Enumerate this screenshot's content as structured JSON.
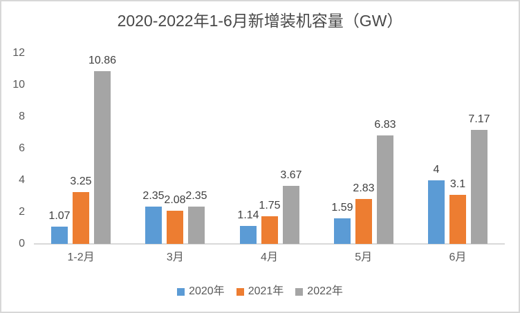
{
  "chart_data": {
    "type": "bar",
    "title": "2020-2022年1-6月新增装机容量（GW）",
    "categories": [
      "1-2月",
      "3月",
      "4月",
      "5月",
      "6月"
    ],
    "series": [
      {
        "name": "2020年",
        "color": "#5B9BD5",
        "values": [
          1.07,
          2.35,
          1.14,
          1.59,
          4
        ]
      },
      {
        "name": "2021年",
        "color": "#ED7D31",
        "values": [
          3.25,
          2.08,
          1.75,
          2.83,
          3.1
        ]
      },
      {
        "name": "2022年",
        "color": "#A5A5A5",
        "values": [
          10.86,
          2.35,
          3.67,
          6.83,
          7.17
        ]
      }
    ],
    "y_ticks": [
      0,
      2,
      4,
      6,
      8,
      10,
      12
    ],
    "ylim": [
      0,
      12
    ],
    "grid": false,
    "legend_position": "bottom",
    "axis_color": "#D9D9D9",
    "tick_text_color": "#595959",
    "value_label_color": "#404040"
  }
}
